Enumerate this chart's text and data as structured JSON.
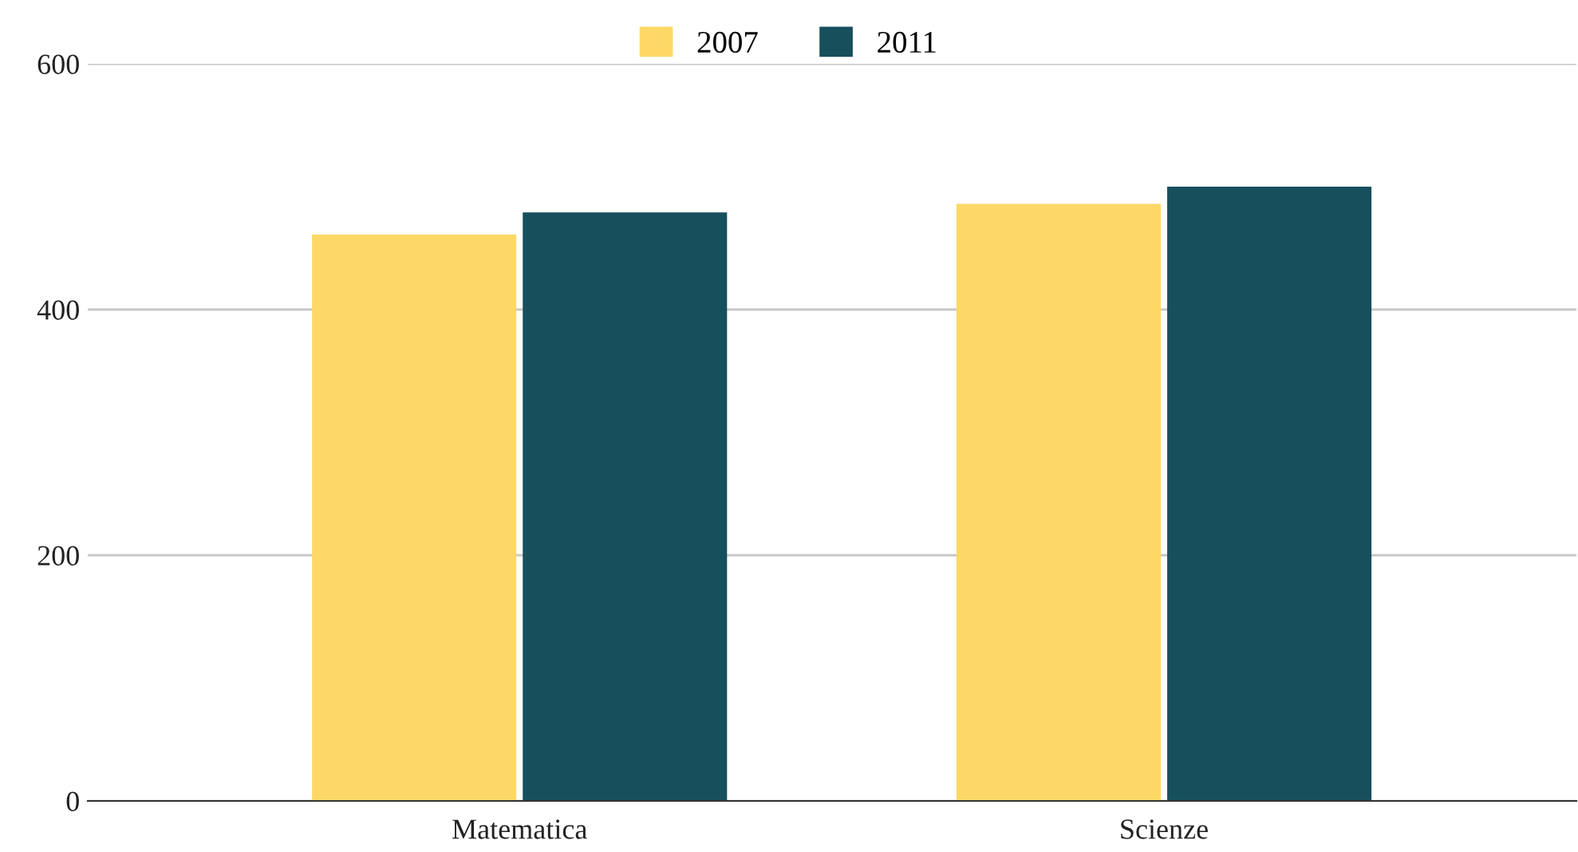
{
  "chart_data": {
    "type": "bar",
    "categories": [
      "Matematica",
      "Scienze"
    ],
    "series": [
      {
        "name": "2007",
        "color": "#fdd867",
        "values": [
          461,
          486
        ]
      },
      {
        "name": "2011",
        "color": "#174f5c",
        "values": [
          479,
          500
        ]
      }
    ],
    "ylim": [
      0,
      600
    ],
    "yticks": [
      0,
      200,
      400,
      600
    ],
    "grid": "y",
    "legend": "top"
  }
}
